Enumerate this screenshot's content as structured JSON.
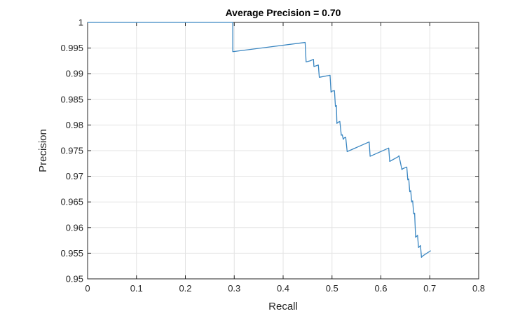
{
  "chart_data": {
    "type": "line",
    "title": "Average Precision = 0.70",
    "xlabel": "Recall",
    "ylabel": "Precision",
    "xlim": [
      0,
      0.8
    ],
    "ylim": [
      0.95,
      1.0
    ],
    "grid": true,
    "xticks": [
      0,
      0.1,
      0.2,
      0.3,
      0.4,
      0.5,
      0.6,
      0.7,
      0.8
    ],
    "xtick_labels": [
      "0",
      "0.1",
      "0.2",
      "0.3",
      "0.4",
      "0.5",
      "0.6",
      "0.7",
      "0.8"
    ],
    "yticks": [
      0.95,
      0.955,
      0.96,
      0.965,
      0.97,
      0.975,
      0.98,
      0.985,
      0.99,
      0.995,
      1.0
    ],
    "ytick_labels": [
      "0.95",
      "0.955",
      "0.96",
      "0.965",
      "0.97",
      "0.975",
      "0.98",
      "0.985",
      "0.99",
      "0.995",
      "1"
    ],
    "series": [
      {
        "color": "#3b87c2",
        "x": [
          0,
          0.296,
          0.297,
          0.297,
          0.445,
          0.447,
          0.455,
          0.462,
          0.463,
          0.472,
          0.474,
          0.496,
          0.498,
          0.5,
          0.505,
          0.507,
          0.509,
          0.51,
          0.512,
          0.516,
          0.519,
          0.521,
          0.523,
          0.525,
          0.528,
          0.531,
          0.533,
          0.576,
          0.578,
          0.616,
          0.618,
          0.635,
          0.637,
          0.643,
          0.645,
          0.653,
          0.655,
          0.657,
          0.659,
          0.661,
          0.663,
          0.665,
          0.667,
          0.669,
          0.671,
          0.673,
          0.675,
          0.677,
          0.679,
          0.681,
          0.683,
          0.686,
          0.702
        ],
        "y": [
          1.0,
          1.0,
          1.0,
          0.9943,
          0.9961,
          0.9923,
          0.9925,
          0.9928,
          0.9914,
          0.9917,
          0.9893,
          0.9897,
          0.9864,
          0.9866,
          0.9867,
          0.9836,
          0.9838,
          0.9803,
          0.9805,
          0.9807,
          0.978,
          0.9781,
          0.9772,
          0.9775,
          0.9776,
          0.9748,
          0.9749,
          0.9767,
          0.9739,
          0.9755,
          0.9729,
          0.9738,
          0.974,
          0.9713,
          0.9715,
          0.9718,
          0.9693,
          0.9695,
          0.967,
          0.9672,
          0.965,
          0.9652,
          0.9627,
          0.9628,
          0.9581,
          0.9583,
          0.9585,
          0.9561,
          0.9563,
          0.9565,
          0.9542,
          0.9545,
          0.9555
        ]
      }
    ]
  }
}
